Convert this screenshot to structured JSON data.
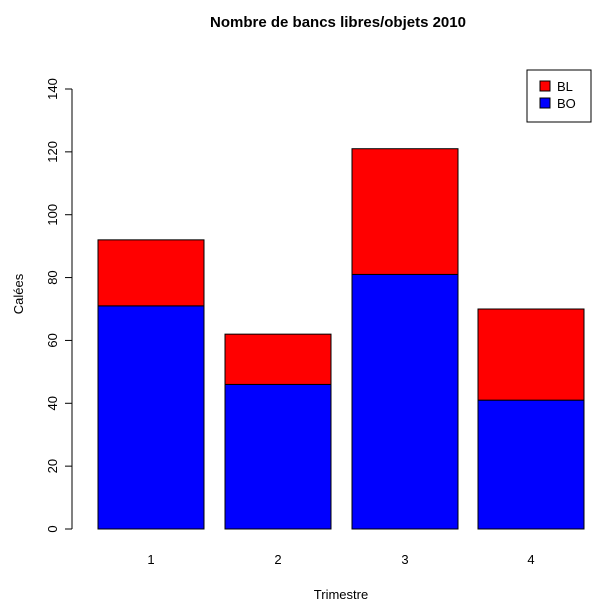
{
  "chart_data": {
    "type": "bar",
    "stacked": true,
    "title": "Nombre de bancs libres/objets 2010",
    "xlabel": "Trimestre",
    "ylabel": "Calées",
    "categories": [
      "1",
      "2",
      "3",
      "4"
    ],
    "ylim": [
      0,
      140
    ],
    "yticks": [
      0,
      20,
      40,
      60,
      80,
      100,
      120,
      140
    ],
    "series": [
      {
        "name": "BO",
        "color": "#0000ff",
        "values": [
          71,
          46,
          81,
          41
        ]
      },
      {
        "name": "BL",
        "color": "#ff0000",
        "values": [
          21,
          16,
          40,
          29
        ]
      }
    ],
    "legend": {
      "position": "top-right",
      "order": [
        "BL",
        "BO"
      ]
    },
    "grid": false
  }
}
